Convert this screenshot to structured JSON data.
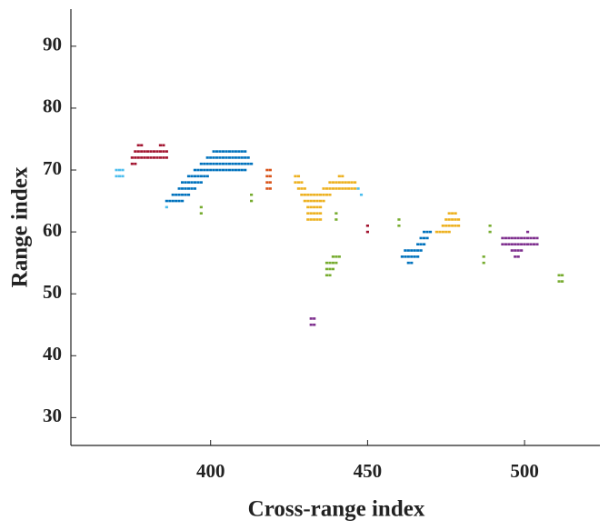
{
  "chart_data": {
    "type": "scatter",
    "x_label": "Cross-range index",
    "y_label": "Range index",
    "xlim": [
      355.5,
      524
    ],
    "ylim": [
      25.5,
      96
    ],
    "xticks": [
      400,
      450,
      500
    ],
    "yticks": [
      30,
      40,
      50,
      60,
      70,
      80,
      90
    ],
    "series": [
      {
        "color": "#4dbeee",
        "x": [
          370,
          371,
          372,
          370,
          371,
          372,
          447,
          448,
          386
        ],
        "values": [
          70,
          70,
          70,
          69,
          69,
          69,
          67,
          66,
          64
        ]
      },
      {
        "color": "#a2142f",
        "x": [
          377,
          378,
          384,
          385,
          376,
          377,
          378,
          379,
          380,
          381,
          382,
          383,
          384,
          385,
          386,
          375,
          376,
          377,
          378,
          379,
          380,
          381,
          382,
          383,
          384,
          385,
          386,
          375,
          376,
          450,
          450
        ],
        "values": [
          74,
          74,
          74,
          74,
          73,
          73,
          73,
          73,
          73,
          73,
          73,
          73,
          73,
          73,
          73,
          72,
          72,
          72,
          72,
          72,
          72,
          72,
          72,
          72,
          72,
          72,
          72,
          71,
          71,
          61,
          60
        ]
      },
      {
        "color": "#d95319",
        "x": [
          418,
          419,
          418,
          419,
          418,
          419,
          418,
          419
        ],
        "values": [
          70,
          70,
          69,
          69,
          68,
          68,
          67,
          67
        ]
      },
      {
        "color": "#0072bd",
        "x": [
          401,
          402,
          403,
          404,
          405,
          406,
          407,
          408,
          409,
          410,
          411,
          399,
          400,
          401,
          402,
          403,
          404,
          405,
          406,
          407,
          408,
          409,
          410,
          411,
          412,
          397,
          398,
          399,
          400,
          401,
          402,
          403,
          404,
          405,
          406,
          407,
          408,
          409,
          410,
          411,
          412,
          413,
          395,
          396,
          397,
          398,
          399,
          400,
          401,
          402,
          403,
          404,
          405,
          406,
          407,
          408,
          409,
          410,
          411,
          393,
          394,
          395,
          396,
          397,
          398,
          399,
          391,
          392,
          393,
          394,
          395,
          396,
          397,
          390,
          391,
          392,
          393,
          394,
          395,
          388,
          389,
          390,
          391,
          392,
          393,
          386,
          387,
          388,
          389,
          390,
          391,
          468,
          469,
          470,
          467,
          468,
          469,
          466,
          467,
          468,
          462,
          463,
          464,
          465,
          466,
          467,
          461,
          462,
          463,
          464,
          465,
          466,
          463,
          464
        ],
        "values": [
          73,
          73,
          73,
          73,
          73,
          73,
          73,
          73,
          73,
          73,
          73,
          72,
          72,
          72,
          72,
          72,
          72,
          72,
          72,
          72,
          72,
          72,
          72,
          72,
          72,
          71,
          71,
          71,
          71,
          71,
          71,
          71,
          71,
          71,
          71,
          71,
          71,
          71,
          71,
          71,
          71,
          71,
          70,
          70,
          70,
          70,
          70,
          70,
          70,
          70,
          70,
          70,
          70,
          70,
          70,
          70,
          70,
          70,
          70,
          69,
          69,
          69,
          69,
          69,
          69,
          69,
          68,
          68,
          68,
          68,
          68,
          68,
          68,
          67,
          67,
          67,
          67,
          67,
          67,
          66,
          66,
          66,
          66,
          66,
          66,
          65,
          65,
          65,
          65,
          65,
          65,
          60,
          60,
          60,
          59,
          59,
          59,
          58,
          58,
          58,
          57,
          57,
          57,
          57,
          57,
          57,
          56,
          56,
          56,
          56,
          56,
          56,
          55,
          55
        ]
      },
      {
        "color": "#edb120",
        "x": [
          427,
          428,
          441,
          442,
          427,
          428,
          429,
          438,
          439,
          440,
          441,
          442,
          443,
          444,
          445,
          446,
          428,
          429,
          430,
          436,
          437,
          438,
          439,
          440,
          441,
          442,
          443,
          444,
          445,
          446,
          429,
          430,
          431,
          432,
          433,
          434,
          435,
          436,
          437,
          438,
          430,
          431,
          432,
          433,
          434,
          435,
          436,
          431,
          432,
          433,
          434,
          435,
          431,
          432,
          433,
          434,
          435,
          431,
          432,
          433,
          434,
          435,
          476,
          477,
          478,
          475,
          476,
          477,
          478,
          479,
          474,
          475,
          476,
          477,
          478,
          479,
          472,
          473,
          474,
          475,
          476
        ],
        "values": [
          69,
          69,
          69,
          69,
          68,
          68,
          68,
          68,
          68,
          68,
          68,
          68,
          68,
          68,
          68,
          68,
          67,
          67,
          67,
          67,
          67,
          67,
          67,
          67,
          67,
          67,
          67,
          67,
          67,
          67,
          66,
          66,
          66,
          66,
          66,
          66,
          66,
          66,
          66,
          66,
          65,
          65,
          65,
          65,
          65,
          65,
          65,
          64,
          64,
          64,
          64,
          64,
          63,
          63,
          63,
          63,
          63,
          62,
          62,
          62,
          62,
          62,
          63,
          63,
          63,
          62,
          62,
          62,
          62,
          62,
          61,
          61,
          61,
          61,
          61,
          61,
          60,
          60,
          60,
          60,
          60
        ]
      },
      {
        "color": "#77ac30",
        "x": [
          397,
          397,
          413,
          413,
          440,
          440,
          460,
          460,
          489,
          489,
          487,
          487,
          439,
          440,
          441,
          437,
          438,
          439,
          440,
          437,
          438,
          439,
          437,
          438,
          511,
          512,
          511,
          512
        ],
        "values": [
          64,
          63,
          66,
          65,
          63,
          62,
          62,
          61,
          61,
          60,
          56,
          55,
          56,
          56,
          56,
          55,
          55,
          55,
          55,
          54,
          54,
          54,
          53,
          53,
          53,
          53,
          52,
          52
        ]
      },
      {
        "color": "#7e2f8e",
        "x": [
          501,
          493,
          494,
          495,
          496,
          497,
          498,
          499,
          500,
          501,
          502,
          503,
          504,
          493,
          494,
          495,
          496,
          497,
          498,
          499,
          500,
          501,
          502,
          503,
          504,
          496,
          497,
          498,
          499,
          497,
          498,
          432,
          433,
          432,
          433
        ],
        "values": [
          60,
          59,
          59,
          59,
          59,
          59,
          59,
          59,
          59,
          59,
          59,
          59,
          59,
          58,
          58,
          58,
          58,
          58,
          58,
          58,
          58,
          58,
          58,
          58,
          58,
          57,
          57,
          57,
          57,
          56,
          56,
          46,
          46,
          45,
          45
        ]
      }
    ]
  }
}
